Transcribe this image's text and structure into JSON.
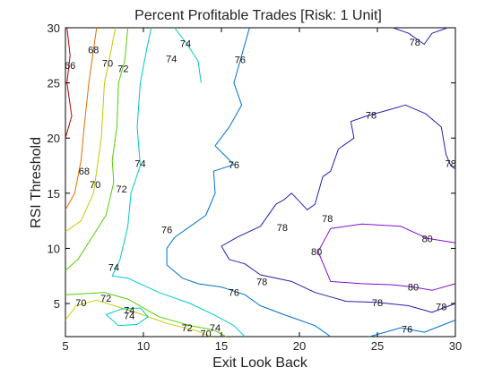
{
  "chart_data": {
    "type": "contour",
    "title": "Percent Profitable Trades [Risk: 1 Unit]",
    "xlabel": "Exit Look Back",
    "ylabel": "RSI Threshold",
    "xlim": [
      5,
      30
    ],
    "ylim": [
      2,
      30
    ],
    "xticks": [
      5,
      10,
      15,
      20,
      25,
      30
    ],
    "yticks": [
      5,
      10,
      15,
      20,
      25,
      30
    ],
    "grid": false,
    "contours": [
      {
        "level": 66,
        "color": "#c00000",
        "labels": [
          [
            5.3,
            26.6
          ]
        ],
        "paths": [
          [
            [
              5.1,
              30
            ],
            [
              5.3,
              27.5
            ],
            [
              5.1,
              25
            ],
            [
              5.4,
              22
            ],
            [
              5.0,
              20
            ]
          ]
        ]
      },
      {
        "level": 68,
        "color": "#e07000",
        "labels": [
          [
            6.8,
            28.0
          ],
          [
            6.2,
            17.0
          ]
        ],
        "paths": [
          [
            [
              7.0,
              30
            ],
            [
              6.8,
              28
            ],
            [
              6.5,
              25
            ],
            [
              6.2,
              21
            ],
            [
              6.0,
              18
            ],
            [
              5.6,
              15
            ],
            [
              5.0,
              13.5
            ]
          ]
        ]
      },
      {
        "level": 70,
        "color": "#c8c800",
        "labels": [
          [
            7.7,
            26.8
          ],
          [
            6.9,
            15.8
          ],
          [
            6.0,
            5.1
          ],
          [
            14.0,
            2.3
          ]
        ],
        "paths": [
          [
            [
              8.2,
              30
            ],
            [
              7.8,
              27
            ],
            [
              7.5,
              25
            ],
            [
              7.3,
              20
            ],
            [
              7.0,
              17
            ],
            [
              6.8,
              15
            ],
            [
              6.0,
              12.5
            ],
            [
              5.0,
              11.5
            ]
          ],
          [
            [
              5.0,
              3.5
            ],
            [
              5.7,
              4.8
            ],
            [
              7.0,
              5.3
            ],
            [
              9.5,
              4.2
            ],
            [
              11.5,
              3.2
            ],
            [
              13.5,
              2.5
            ],
            [
              14.3,
              2.0
            ]
          ]
        ]
      },
      {
        "level": 72,
        "color": "#50d000",
        "labels": [
          [
            8.7,
            26.3
          ],
          [
            8.6,
            15.4
          ],
          [
            7.6,
            5.5
          ],
          [
            12.8,
            2.8
          ]
        ],
        "paths": [
          [
            [
              9.0,
              30
            ],
            [
              8.8,
              27
            ],
            [
              8.4,
              25
            ],
            [
              8.3,
              21
            ],
            [
              8.0,
              18
            ],
            [
              8.1,
              16
            ],
            [
              7.6,
              13
            ],
            [
              6.7,
              11
            ],
            [
              5.8,
              9
            ],
            [
              5.0,
              8
            ]
          ],
          [
            [
              5.0,
              5.8
            ],
            [
              7.5,
              6.0
            ],
            [
              9.0,
              5.4
            ],
            [
              11.0,
              3.8
            ],
            [
              13.0,
              3.0
            ],
            [
              14.5,
              2.6
            ],
            [
              15.3,
              2.0
            ]
          ]
        ]
      },
      {
        "level": 74,
        "color": "#00c8c8",
        "labels": [
          [
            11.8,
            27.2
          ],
          [
            12.7,
            28.6
          ],
          [
            9.8,
            17.7
          ],
          [
            8.1,
            8.3
          ],
          [
            9.1,
            3.9
          ],
          [
            9.1,
            4.4
          ],
          [
            14.6,
            2.8
          ]
        ],
        "paths": [
          [
            [
              10.5,
              30
            ],
            [
              10.2,
              28
            ],
            [
              9.8,
              25
            ],
            [
              9.6,
              21
            ],
            [
              9.8,
              17.5
            ],
            [
              9.2,
              15
            ],
            [
              9.0,
              12
            ],
            [
              8.5,
              9
            ],
            [
              8.0,
              7.5
            ],
            [
              9.0,
              7.3
            ],
            [
              11.0,
              6.0
            ],
            [
              13.0,
              5.0
            ],
            [
              14.5,
              4.0
            ],
            [
              15.8,
              3.0
            ],
            [
              16.5,
              2.0
            ]
          ],
          [
            [
              12.0,
              30
            ],
            [
              12.8,
              28.5
            ],
            [
              13.5,
              27
            ],
            [
              13.7,
              25
            ]
          ],
          [
            [
              7.6,
              4.0
            ],
            [
              8.6,
              4.5
            ],
            [
              9.8,
              4.6
            ],
            [
              10.3,
              3.8
            ],
            [
              9.6,
              3.1
            ],
            [
              8.4,
              3.0
            ],
            [
              7.6,
              4.0
            ]
          ]
        ]
      },
      {
        "level": 76,
        "color": "#0070d0",
        "labels": [
          [
            16.2,
            27.1
          ],
          [
            15.8,
            17.6
          ],
          [
            11.5,
            11.7
          ],
          [
            15.8,
            6.0
          ],
          [
            26.9,
            2.7
          ]
        ],
        "paths": [
          [
            [
              16.8,
              30
            ],
            [
              16.2,
              27
            ],
            [
              15.8,
              25
            ],
            [
              16.3,
              23
            ],
            [
              15.5,
              21
            ],
            [
              14.6,
              19.3
            ],
            [
              15.8,
              17.6
            ],
            [
              14.5,
              17
            ],
            [
              14.6,
              15
            ],
            [
              14.0,
              13
            ],
            [
              13.0,
              12
            ],
            [
              12.0,
              11
            ],
            [
              11.5,
              10
            ],
            [
              11.5,
              8.5
            ],
            [
              12.5,
              7.3
            ],
            [
              13.5,
              6.8
            ],
            [
              15.0,
              6.5
            ],
            [
              16.5,
              5.8
            ],
            [
              17.5,
              4.8
            ],
            [
              19.0,
              4.0
            ],
            [
              20.0,
              3.5
            ],
            [
              21.0,
              3.0
            ],
            [
              22.0,
              2.0
            ]
          ],
          [
            [
              24.5,
              2.0
            ],
            [
              26.5,
              2.8
            ],
            [
              28.0,
              2.4
            ],
            [
              30.0,
              3.5
            ]
          ]
        ]
      },
      {
        "level": 78,
        "color": "#2020b0",
        "labels": [
          [
            27.4,
            28.7
          ],
          [
            24.6,
            22.1
          ],
          [
            29.7,
            17.7
          ],
          [
            18.9,
            11.9
          ],
          [
            21.8,
            12.7
          ],
          [
            17.6,
            7.0
          ],
          [
            25.0,
            5.1
          ],
          [
            29.1,
            4.7
          ]
        ],
        "paths": [
          [
            [
              26.0,
              30
            ],
            [
              27.0,
              29.5
            ],
            [
              28.0,
              28.5
            ],
            [
              28.5,
              29.5
            ],
            [
              29.5,
              30.0
            ]
          ],
          [
            [
              30.0,
              17.2
            ],
            [
              29.7,
              17.5
            ],
            [
              29.4,
              18.5
            ],
            [
              29.1,
              21.0
            ],
            [
              28.1,
              22.2
            ],
            [
              26.8,
              23.0
            ],
            [
              25.6,
              22.5
            ],
            [
              24.3,
              22.0
            ],
            [
              23.3,
              21.5
            ],
            [
              23.5,
              20.0
            ],
            [
              22.5,
              19.0
            ],
            [
              22.0,
              17.0
            ],
            [
              21.5,
              16.5
            ],
            [
              21.0,
              14.0
            ],
            [
              20.5,
              13.5
            ],
            [
              19.5,
              15.0
            ],
            [
              19.0,
              14.4
            ],
            [
              18.5,
              14.0
            ],
            [
              17.5,
              12.0
            ],
            [
              16.0,
              11.0
            ],
            [
              15.0,
              10.2
            ],
            [
              15.5,
              9.0
            ],
            [
              16.5,
              8.6
            ],
            [
              17.5,
              7.6
            ],
            [
              19.5,
              7.0
            ],
            [
              21.0,
              6.0
            ],
            [
              23.0,
              5.2
            ],
            [
              25.0,
              5.1
            ],
            [
              27.0,
              4.8
            ],
            [
              28.5,
              4.2
            ],
            [
              30.0,
              5.0
            ]
          ]
        ]
      },
      {
        "level": 80,
        "color": "#8010d0",
        "labels": [
          [
            21.1,
            9.7
          ],
          [
            28.2,
            10.9
          ],
          [
            27.3,
            6.5
          ]
        ],
        "paths": [
          [
            [
              21.2,
              9.7
            ],
            [
              22.0,
              11.8
            ],
            [
              24.0,
              12.2
            ],
            [
              26.5,
              12.0
            ],
            [
              28.2,
              10.9
            ],
            [
              30.0,
              10.5
            ]
          ],
          [
            [
              21.2,
              9.7
            ],
            [
              22.0,
              7.0
            ],
            [
              24.0,
              6.8
            ],
            [
              26.0,
              6.7
            ],
            [
              27.3,
              6.5
            ],
            [
              28.5,
              6.2
            ],
            [
              30.0,
              6.8
            ]
          ]
        ]
      }
    ]
  }
}
